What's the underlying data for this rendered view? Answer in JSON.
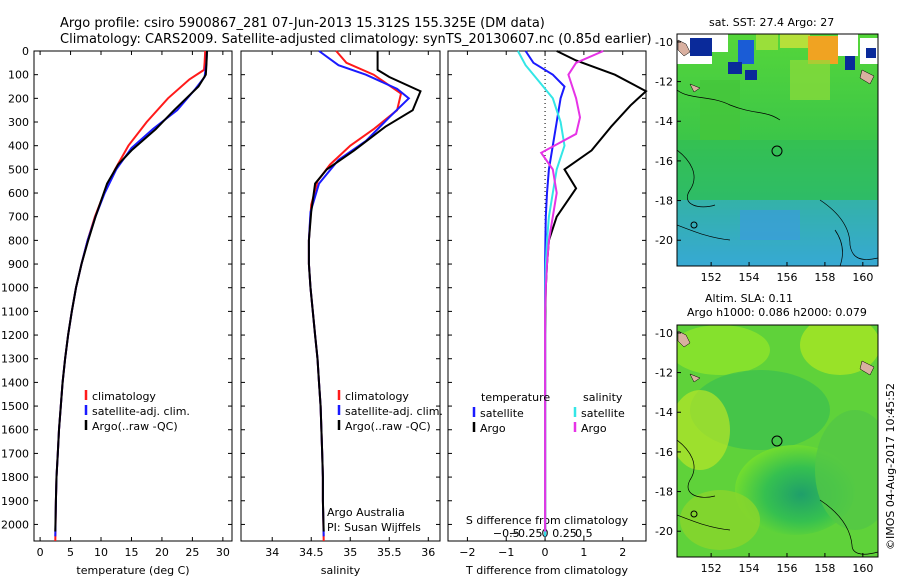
{
  "header": {
    "line1": "Argo profile: csiro 5900867_281 07-Jun-2013 15.312S 155.325E (DM data)",
    "line2": "Climatology: CARS2009. Satellite-adjusted climatology: synTS_20130607.nc (0.85d earlier)"
  },
  "side_stamp": "©IMOS 04-Aug-2017 10:45:52",
  "colors": {
    "climatology": "#ff1a1a",
    "satellite": "#1a1aff",
    "argo": "#000000",
    "salinity_satellite": "#33e6e6",
    "salinity_argo": "#e633e6"
  },
  "chart_data": [
    {
      "type": "line",
      "id": "temperature",
      "title": "",
      "xlabel": "temperature (deg C)",
      "ylabel": "",
      "xlim": [
        -1,
        31.5
      ],
      "ylim": [
        2070,
        0
      ],
      "xticks": [
        0,
        5,
        10,
        15,
        20,
        25,
        30
      ],
      "xtick_labels": [
        "0",
        "5",
        "10",
        "15",
        "20",
        "25",
        "30"
      ],
      "yticks": [
        0,
        100,
        200,
        300,
        400,
        500,
        600,
        700,
        800,
        900,
        1000,
        1100,
        1200,
        1300,
        1400,
        1500,
        1600,
        1700,
        1800,
        1900,
        2000
      ],
      "ytick_labels": [
        "0",
        "100",
        "200",
        "300",
        "400",
        "500",
        "600",
        "700",
        "800",
        "900",
        "1000",
        "1100",
        "1200",
        "1300",
        "1400",
        "1500",
        "1600",
        "1700",
        "1800",
        "1900",
        "2000"
      ],
      "legend": [
        "climatology",
        "satellite-adj. clim.",
        "Argo(..raw -QC)"
      ],
      "legend_position": "bottom-right",
      "series": [
        {
          "name": "climatology",
          "color": "#ff1a1a",
          "x": [
            27.1,
            27.0,
            26.9,
            24.5,
            21.0,
            17.5,
            14.5,
            12.3,
            10.5,
            9.0,
            7.8,
            6.8,
            5.9,
            5.2,
            4.6,
            4.1,
            3.7,
            3.4,
            3.1,
            2.9,
            2.7,
            2.6,
            2.5
          ],
          "y": [
            0,
            50,
            80,
            120,
            200,
            300,
            400,
            500,
            600,
            700,
            800,
            900,
            1000,
            1100,
            1200,
            1300,
            1400,
            1500,
            1600,
            1700,
            1800,
            1900,
            2070
          ]
        },
        {
          "name": "satellite-adj. clim.",
          "color": "#1a1aff",
          "x": [
            27.4,
            27.3,
            27.0,
            25.5,
            22.5,
            18.5,
            15.0,
            12.5,
            10.6,
            9.1,
            7.8,
            6.8,
            5.9,
            5.2,
            4.6,
            4.1,
            3.7,
            3.4,
            3.1,
            2.9,
            2.7,
            2.6,
            2.5
          ],
          "y": [
            0,
            50,
            110,
            160,
            250,
            330,
            410,
            500,
            600,
            700,
            800,
            900,
            1000,
            1100,
            1200,
            1300,
            1400,
            1500,
            1600,
            1700,
            1800,
            1900,
            2050
          ]
        },
        {
          "name": "Argo(..raw -QC)",
          "color": "#000000",
          "x": [
            27.4,
            27.3,
            27.2,
            26.0,
            22.0,
            19.0,
            15.0,
            12.8,
            11.0,
            9.1,
            7.9,
            6.8,
            5.9,
            5.2,
            4.6,
            4.1,
            3.7,
            3.4,
            3.1,
            2.9,
            2.7,
            2.6,
            2.5
          ],
          "y": [
            0,
            60,
            100,
            150,
            250,
            330,
            420,
            480,
            560,
            700,
            800,
            900,
            1000,
            1100,
            1200,
            1300,
            1400,
            1500,
            1600,
            1700,
            1800,
            1900,
            2030
          ]
        }
      ]
    },
    {
      "type": "line",
      "id": "salinity",
      "title": "",
      "xlabel": "salinity",
      "ylabel": "",
      "xlim": [
        33.6,
        36.15
      ],
      "ylim": [
        2070,
        0
      ],
      "xticks": [
        34,
        34.5,
        35,
        35.5,
        36
      ],
      "xtick_labels": [
        "34",
        "34.5",
        "35",
        "35.5",
        "36"
      ],
      "legend": [
        "climatology",
        "satellite-adj. clim.",
        "Argo(..raw -QC)"
      ],
      "legend_position": "bottom-right",
      "annotations": [
        "Argo Australia",
        "PI: Susan Wijffels"
      ],
      "series": [
        {
          "name": "climatology",
          "color": "#ff1a1a",
          "x": [
            34.82,
            34.95,
            35.3,
            35.65,
            35.6,
            35.3,
            35.0,
            34.74,
            34.58,
            34.5,
            34.47,
            34.47,
            34.49,
            34.52,
            34.55,
            34.58,
            34.6,
            34.62,
            34.63,
            34.64,
            34.65,
            34.65,
            34.66
          ],
          "y": [
            0,
            50,
            100,
            180,
            250,
            330,
            400,
            480,
            550,
            650,
            800,
            900,
            1000,
            1100,
            1200,
            1300,
            1400,
            1500,
            1600,
            1700,
            1800,
            1900,
            2070
          ]
        },
        {
          "name": "satellite-adj. clim.",
          "color": "#1a1aff",
          "x": [
            34.6,
            34.85,
            35.2,
            35.6,
            35.75,
            35.5,
            35.2,
            34.85,
            34.6,
            34.49,
            34.47,
            34.47,
            34.49,
            34.52,
            34.55,
            34.58,
            34.6,
            34.62,
            34.63,
            34.64,
            34.65,
            34.65,
            34.66
          ],
          "y": [
            0,
            60,
            100,
            160,
            200,
            280,
            380,
            460,
            560,
            680,
            800,
            900,
            1000,
            1100,
            1200,
            1300,
            1400,
            1500,
            1600,
            1700,
            1800,
            1900,
            2050
          ]
        },
        {
          "name": "Argo(..raw -QC)",
          "color": "#000000",
          "x": [
            35.35,
            35.35,
            35.5,
            35.9,
            35.8,
            35.45,
            35.05,
            34.7,
            34.55,
            34.5,
            34.47,
            34.47,
            34.49,
            34.52,
            34.55,
            34.58,
            34.6,
            34.62,
            34.63,
            34.64,
            34.65,
            34.65,
            34.66
          ],
          "y": [
            0,
            80,
            110,
            170,
            250,
            320,
            420,
            500,
            560,
            680,
            800,
            900,
            1000,
            1100,
            1200,
            1300,
            1400,
            1500,
            1600,
            1700,
            1800,
            1900,
            2030
          ]
        }
      ]
    },
    {
      "type": "line",
      "id": "differences",
      "title": "",
      "xlabel": "T difference from climatology",
      "xlabel_top": "S difference from climatology",
      "xlim": [
        -2.5,
        2.6
      ],
      "ylim": [
        2070,
        0
      ],
      "xticks_T": [
        -2,
        -1,
        0,
        1,
        2
      ],
      "xtick_labels_T": [
        "−2",
        "−1",
        "0",
        "1",
        "2"
      ],
      "xticks_S_pos": [
        -1.0,
        -0.5,
        0,
        0.5,
        1.0
      ],
      "xtick_labels_S": [
        "−0.5",
        "−0.25",
        "0",
        "0.25",
        "0.5"
      ],
      "legend_temperature": {
        "heading": "temperature",
        "items": [
          "satellite",
          "Argo"
        ]
      },
      "legend_salinity": {
        "heading": "salinity",
        "items": [
          "satellite",
          "Argo"
        ]
      },
      "legend_position": "bottom",
      "zero_line": true,
      "series": [
        {
          "name": "T satellite",
          "color": "#1a1aff",
          "x": [
            -0.5,
            -0.3,
            0.2,
            0.5,
            0.4,
            0.3,
            0.2,
            0.1,
            0.05,
            0.02,
            0.01,
            0,
            0,
            0,
            0,
            0,
            0,
            0,
            0,
            0,
            0
          ],
          "y": [
            0,
            50,
            100,
            150,
            200,
            300,
            400,
            500,
            600,
            700,
            800,
            900,
            1000,
            1100,
            1200,
            1300,
            1400,
            1500,
            1600,
            1800,
            2050
          ]
        },
        {
          "name": "T Argo",
          "color": "#000000",
          "x": [
            0.3,
            0.8,
            1.8,
            2.6,
            2.2,
            1.7,
            1.2,
            0.5,
            0.8,
            0.3,
            0.1,
            0.05,
            0.02,
            0.01,
            0,
            0,
            0,
            0,
            0,
            0,
            0
          ],
          "y": [
            0,
            40,
            100,
            170,
            230,
            320,
            420,
            500,
            580,
            700,
            800,
            900,
            1000,
            1100,
            1200,
            1300,
            1400,
            1500,
            1600,
            1800,
            2030
          ]
        },
        {
          "name": "S satellite",
          "color": "#33e6e6",
          "x": [
            -0.7,
            -0.5,
            -0.2,
            0.2,
            0.4,
            0.5,
            0.3,
            0.2,
            0.1,
            0.05,
            0.02,
            0.01,
            0,
            0,
            0,
            0,
            0,
            0,
            0
          ],
          "y": [
            0,
            60,
            120,
            200,
            300,
            400,
            500,
            600,
            700,
            800,
            900,
            1000,
            1100,
            1200,
            1400,
            1500,
            1600,
            1800,
            2050
          ]
        },
        {
          "name": "S Argo",
          "color": "#e633e6",
          "x": [
            1.5,
            0.8,
            0.6,
            0.8,
            0.9,
            0.8,
            -0.1,
            0.2,
            0.3,
            0.2,
            0.1,
            0.05,
            0.02,
            0,
            0,
            0,
            0,
            0,
            0
          ],
          "y": [
            0,
            50,
            100,
            200,
            280,
            350,
            430,
            500,
            600,
            700,
            800,
            900,
            1000,
            1100,
            1200,
            1400,
            1600,
            1800,
            2030
          ]
        }
      ]
    },
    {
      "type": "heatmap",
      "id": "sst_map",
      "title": "sat. SST: 27.4  Argo: 27",
      "xlim": [
        150.2,
        160.8
      ],
      "ylim": [
        -21.3,
        -9.6
      ],
      "xticks": [
        152,
        154,
        156,
        158,
        160
      ],
      "xtick_labels": [
        "152",
        "154",
        "156",
        "158",
        "160"
      ],
      "yticks": [
        -10,
        -12,
        -14,
        -16,
        -18,
        -20
      ],
      "ytick_labels": [
        "-10",
        "-12",
        "-14",
        "-16",
        "-18",
        "-20"
      ],
      "marker": {
        "lon": 155.3,
        "lat": -15.3
      },
      "marker2": {
        "lon": 151.0,
        "lat": -19.3
      }
    },
    {
      "type": "heatmap",
      "id": "sla_map",
      "title": "Altim. SLA: 0.11",
      "subtitle": "Argo h1000: 0.086 h2000: 0.079",
      "xlim": [
        150.2,
        160.8
      ],
      "ylim": [
        -21.3,
        -9.6
      ],
      "xticks": [
        152,
        154,
        156,
        158,
        160
      ],
      "xtick_labels": [
        "152",
        "154",
        "156",
        "158",
        "160"
      ],
      "yticks": [
        -10,
        -12,
        -14,
        -16,
        -18,
        -20
      ],
      "ytick_labels": [
        "-10",
        "-12",
        "-14",
        "-16",
        "-18",
        "-20"
      ],
      "marker": {
        "lon": 155.3,
        "lat": -15.3
      },
      "marker2": {
        "lon": 151.0,
        "lat": -19.3
      }
    }
  ]
}
